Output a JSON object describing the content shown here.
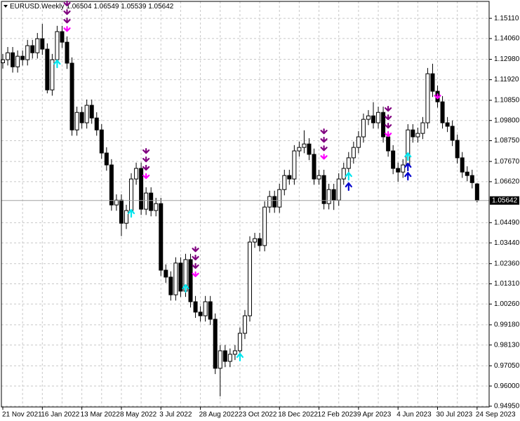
{
  "chart_data": {
    "type": "candlestick",
    "title": "EURUSD.Weekly",
    "categories": [
      "21 Nov 2021",
      null,
      null,
      null,
      null,
      null,
      null,
      null,
      "16 Jan 2022",
      null,
      null,
      null,
      null,
      null,
      null,
      null,
      "13 Mar 2022",
      null,
      null,
      null,
      null,
      null,
      null,
      null,
      "8 May 2022",
      null,
      null,
      null,
      null,
      null,
      null,
      null,
      "3 Jul 2022",
      null,
      null,
      null,
      null,
      null,
      null,
      null,
      "28 Aug 2022",
      null,
      null,
      null,
      null,
      null,
      null,
      null,
      "23 Oct 2022",
      null,
      null,
      null,
      null,
      null,
      null,
      null,
      "18 Dec 2022",
      null,
      null,
      null,
      null,
      null,
      null,
      null,
      "12 Feb 2023",
      null,
      null,
      null,
      null,
      null,
      null,
      null,
      "9 Apr 2023",
      null,
      null,
      null,
      null,
      null,
      null,
      null,
      "4 Jun 2023",
      null,
      null,
      null,
      null,
      null,
      null,
      null,
      "30 Jul 2023",
      null,
      null,
      null,
      null,
      null,
      null,
      null,
      "24 Sep 2023"
    ],
    "open": [
      1.128,
      1.1296,
      1.1332,
      1.1259,
      1.1314,
      1.1296,
      1.1369,
      1.1332,
      1.1405,
      1.1351,
      1.1139,
      1.1296,
      1.1442,
      1.1387,
      1.1278,
      1.0931,
      1.1022,
      1.0968,
      1.1059,
      1.0993,
      1.0931,
      1.0811,
      1.0749,
      1.0541,
      1.0566,
      1.0446,
      1.0512,
      1.0676,
      1.0731,
      1.0519,
      1.0603,
      1.0512,
      1.0548,
      1.0202,
      1.0166,
      1.0074,
      1.0239,
      1.0093,
      1.0257,
      1.0038,
      0.9984,
      0.9965,
      1.0038,
      0.9947,
      0.9692,
      0.9783,
      0.9728,
      0.9765,
      0.9783,
      0.9874,
      0.9965,
      1.0348,
      1.0366,
      1.033,
      1.053,
      1.0585,
      1.053,
      1.0621,
      1.0694,
      1.0676,
      1.0822,
      1.084,
      1.0858,
      1.0804,
      1.0676,
      1.0694,
      1.0548,
      1.0621,
      1.0566,
      1.0676,
      1.0731,
      1.0786,
      1.084,
      1.0895,
      1.0986,
      1.1004,
      1.0968,
      1.1022,
      1.0895,
      1.0822,
      1.0731,
      1.0712,
      1.0749,
      1.0931,
      1.0895,
      1.0913,
      1.0968,
      1.1223,
      1.1132,
      1.1077,
      1.0968,
      1.095,
      1.0877,
      1.0786,
      1.0712,
      1.0694,
      1.06504
    ],
    "high": [
      1.1326,
      1.1362,
      1.1362,
      1.1344,
      1.1344,
      1.1399,
      1.1399,
      1.1435,
      1.1482,
      1.1381,
      1.1326,
      1.1472,
      1.1472,
      1.1417,
      1.1308,
      1.1052,
      1.1052,
      1.1089,
      1.1089,
      1.1023,
      1.0961,
      1.0841,
      1.0779,
      1.0596,
      1.0596,
      1.0542,
      1.0706,
      1.0761,
      1.0761,
      1.0633,
      1.0633,
      1.0578,
      1.0578,
      1.0232,
      1.0196,
      1.0269,
      1.0269,
      1.0287,
      1.0287,
      1.0068,
      1.0014,
      1.0068,
      1.0068,
      0.9977,
      0.9813,
      0.9813,
      0.9795,
      0.9813,
      0.9904,
      0.9995,
      1.0378,
      1.0396,
      1.0396,
      1.056,
      1.0615,
      1.0615,
      1.0651,
      1.0724,
      1.0724,
      1.0852,
      1.087,
      1.0929,
      1.0888,
      1.0834,
      1.0724,
      1.0724,
      1.0651,
      1.0651,
      1.0706,
      1.0761,
      1.0816,
      1.087,
      1.0925,
      1.1016,
      1.1034,
      1.1075,
      1.1052,
      1.1052,
      1.0925,
      1.0852,
      1.0761,
      1.0779,
      1.0961,
      1.0961,
      1.0943,
      1.0998,
      1.1253,
      1.1275,
      1.1162,
      1.1107,
      1.0998,
      1.098,
      1.0907,
      1.0816,
      1.0742,
      1.0724,
      1.06549
    ],
    "low": [
      1.125,
      1.1266,
      1.1229,
      1.1229,
      1.1266,
      1.1266,
      1.1302,
      1.1302,
      1.1321,
      1.1121,
      1.1109,
      1.1266,
      1.1357,
      1.1248,
      1.0901,
      1.0901,
      1.0938,
      1.0938,
      1.0963,
      1.0901,
      1.0781,
      1.0719,
      1.0511,
      1.0511,
      1.0379,
      1.0416,
      1.0482,
      1.0646,
      1.0489,
      1.0489,
      1.0482,
      1.0482,
      1.0172,
      1.0136,
      1.0044,
      1.0044,
      1.0063,
      1.0063,
      1.0008,
      0.9954,
      0.9935,
      0.9935,
      0.9917,
      0.9662,
      0.9546,
      0.9698,
      0.9698,
      0.9735,
      0.9753,
      0.9844,
      0.9935,
      1.0318,
      1.03,
      1.03,
      1.05,
      1.05,
      1.05,
      1.0591,
      1.0646,
      1.0646,
      1.0792,
      1.081,
      1.0774,
      1.0646,
      1.0646,
      1.0518,
      1.0518,
      1.0515,
      1.0536,
      1.0646,
      1.0701,
      1.0756,
      1.081,
      1.0865,
      1.0956,
      1.0938,
      1.0938,
      1.0865,
      1.0792,
      1.0701,
      1.0662,
      1.0682,
      1.0719,
      1.0865,
      1.0865,
      1.0883,
      1.0938,
      1.1102,
      1.1047,
      1.0938,
      1.092,
      1.0847,
      1.0756,
      1.0682,
      1.0664,
      1.0627,
      1.05539
    ],
    "close": [
      1.1296,
      1.1332,
      1.1259,
      1.1314,
      1.1296,
      1.1369,
      1.1332,
      1.1405,
      1.1351,
      1.1139,
      1.1296,
      1.1442,
      1.1387,
      1.1278,
      1.0931,
      1.1022,
      1.0968,
      1.1059,
      1.0993,
      1.0931,
      1.0811,
      1.0749,
      1.0541,
      1.0566,
      1.0446,
      1.0512,
      1.0676,
      1.0731,
      1.0519,
      1.0603,
      1.0512,
      1.0548,
      1.0202,
      1.0166,
      1.0074,
      1.0239,
      1.0093,
      1.0257,
      1.0038,
      0.9984,
      0.9965,
      1.0038,
      0.9947,
      0.9692,
      0.9783,
      0.9728,
      0.9765,
      0.9783,
      0.9874,
      0.9965,
      1.0348,
      1.0366,
      1.033,
      1.053,
      1.0585,
      1.053,
      1.0621,
      1.0694,
      1.0676,
      1.0822,
      1.084,
      1.0858,
      1.0804,
      1.0676,
      1.0694,
      1.0548,
      1.0621,
      1.0566,
      1.0676,
      1.0731,
      1.0786,
      1.084,
      1.0895,
      1.0986,
      1.1004,
      1.0968,
      1.1022,
      1.0895,
      1.0822,
      1.0731,
      1.0712,
      1.0749,
      1.0931,
      1.0895,
      1.0913,
      1.0968,
      1.1223,
      1.1132,
      1.1077,
      1.0968,
      1.095,
      1.0877,
      1.0786,
      1.0712,
      1.0694,
      1.0657,
      1.05642
    ],
    "ylim": [
      0.9491,
      1.1599
    ],
    "yticks": [
      {
        "value": 1.1511,
        "label": "1.15110"
      },
      {
        "value": 1.1406,
        "label": "1.14060"
      },
      {
        "value": 1.1298,
        "label": "1.12980"
      },
      {
        "value": 1.1192,
        "label": "1.11920"
      },
      {
        "value": 1.1085,
        "label": "1.10850"
      },
      {
        "value": 1.098,
        "label": "1.09800"
      },
      {
        "value": 1.0875,
        "label": "1.08750"
      },
      {
        "value": 1.0767,
        "label": "1.07670"
      },
      {
        "value": 1.0662,
        "label": "1.06620"
      },
      {
        "value": 1.0449,
        "label": "1.04490"
      },
      {
        "value": 1.0344,
        "label": "1.03440"
      },
      {
        "value": 1.0236,
        "label": "1.02360"
      },
      {
        "value": 1.0131,
        "label": "1.01310"
      },
      {
        "value": 1.0026,
        "label": "1.00260"
      },
      {
        "value": 0.9918,
        "label": "0.99180"
      },
      {
        "value": 0.9813,
        "label": "0.98130"
      },
      {
        "value": 0.9705,
        "label": "0.97050"
      },
      {
        "value": 0.96,
        "label": "0.96000"
      },
      {
        "value": 0.9495,
        "label": "0.94950"
      }
    ],
    "grid": true,
    "up_color": "#ffffff",
    "down_color": "#000000",
    "markers": [
      {
        "index": 13,
        "price": 1.1577,
        "color": "#800080",
        "direction": "down"
      },
      {
        "index": 13,
        "price": 1.1533,
        "color": "#800080",
        "direction": "down"
      },
      {
        "index": 13,
        "price": 1.1489,
        "color": "#800080",
        "direction": "down"
      },
      {
        "index": 13,
        "price": 1.1445,
        "color": "#ff00ff",
        "direction": "down"
      },
      {
        "index": 29,
        "price": 1.0811,
        "color": "#800080",
        "direction": "down"
      },
      {
        "index": 29,
        "price": 1.0767,
        "color": "#800080",
        "direction": "down"
      },
      {
        "index": 29,
        "price": 1.0724,
        "color": "#800080",
        "direction": "down"
      },
      {
        "index": 29,
        "price": 1.068,
        "color": "#ff00ff",
        "direction": "down"
      },
      {
        "index": 39,
        "price": 1.03,
        "color": "#800080",
        "direction": "down"
      },
      {
        "index": 39,
        "price": 1.0257,
        "color": "#800080",
        "direction": "down"
      },
      {
        "index": 39,
        "price": 1.0213,
        "color": "#800080",
        "direction": "down"
      },
      {
        "index": 39,
        "price": 1.017,
        "color": "#ff00ff",
        "direction": "down"
      },
      {
        "index": 65,
        "price": 1.0913,
        "color": "#800080",
        "direction": "down"
      },
      {
        "index": 65,
        "price": 1.0869,
        "color": "#800080",
        "direction": "down"
      },
      {
        "index": 65,
        "price": 1.0825,
        "color": "#800080",
        "direction": "down"
      },
      {
        "index": 65,
        "price": 1.0781,
        "color": "#ff00ff",
        "direction": "down"
      },
      {
        "index": 78,
        "price": 1.103,
        "color": "#800080",
        "direction": "down"
      },
      {
        "index": 78,
        "price": 1.0986,
        "color": "#800080",
        "direction": "down"
      },
      {
        "index": 78,
        "price": 1.0942,
        "color": "#800080",
        "direction": "down"
      },
      {
        "index": 78,
        "price": 1.0898,
        "color": "#ff00ff",
        "direction": "down"
      },
      {
        "index": 88,
        "price": 1.1095,
        "color": "#ff00ff",
        "direction": "down"
      },
      {
        "index": 11,
        "price": 1.1278,
        "color": "#00e5ee",
        "direction": "up"
      },
      {
        "index": 26,
        "price": 1.0501,
        "color": "#00e5ee",
        "direction": "up"
      },
      {
        "index": 37,
        "price": 1.0111,
        "color": "#00e5ee",
        "direction": "up"
      },
      {
        "index": 48,
        "price": 0.9754,
        "color": "#00e5ee",
        "direction": "up"
      },
      {
        "index": 70,
        "price": 1.0694,
        "color": "#00e5ee",
        "direction": "up"
      },
      {
        "index": 70,
        "price": 1.064,
        "color": "#0000cd",
        "direction": "up"
      },
      {
        "index": 82,
        "price": 1.0796,
        "color": "#00e5ee",
        "direction": "up"
      },
      {
        "index": 82,
        "price": 1.0742,
        "color": "#0000cd",
        "direction": "up"
      },
      {
        "index": 82,
        "price": 1.0694,
        "color": "#0000cd",
        "direction": "up"
      }
    ]
  }
}
